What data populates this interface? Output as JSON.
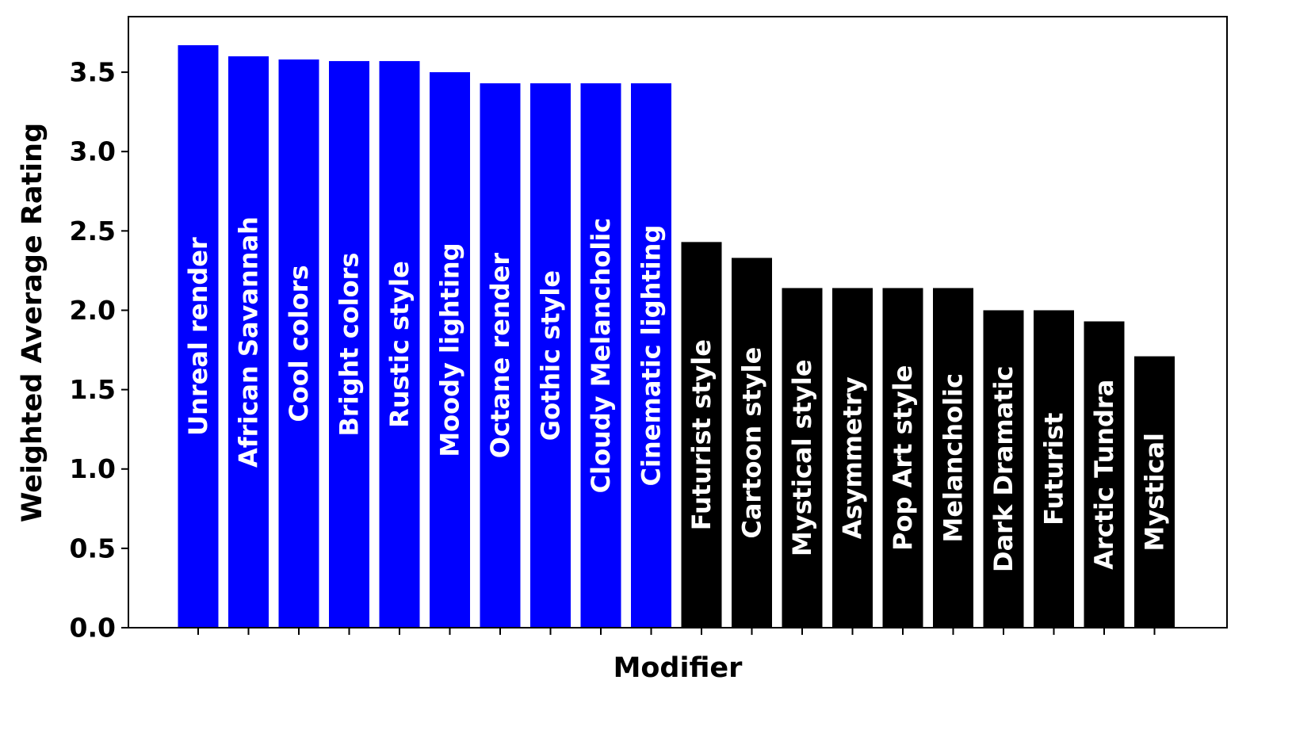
{
  "chart_data": {
    "type": "bar",
    "title": "",
    "xlabel": "Modifier",
    "ylabel": "Weighted Average Rating",
    "ylim": [
      0,
      3.85
    ],
    "yticks": [
      0.0,
      0.5,
      1.0,
      1.5,
      2.0,
      2.5,
      3.0,
      3.5
    ],
    "ytick_labels": [
      "0.0",
      "0.5",
      "1.0",
      "1.5",
      "2.0",
      "2.5",
      "3.0",
      "3.5"
    ],
    "grid": false,
    "legend": "none",
    "categories": [
      "Unreal render",
      "African Savannah",
      "Cool colors",
      "Bright colors",
      "Rustic style",
      "Moody lighting",
      "Octane render",
      "Gothic style",
      "Cloudy Melancholic",
      "Cinematic lighting",
      "Futurist style",
      "Cartoon style",
      "Mystical style",
      "Asymmetry",
      "Pop Art style",
      "Melancholic",
      "Dark Dramatic",
      "Futurist",
      "Arctic Tundra",
      "Mystical"
    ],
    "values": [
      3.67,
      3.6,
      3.58,
      3.57,
      3.57,
      3.5,
      3.43,
      3.43,
      3.43,
      3.43,
      2.43,
      2.33,
      2.14,
      2.14,
      2.14,
      2.14,
      2.0,
      2.0,
      1.93,
      1.71
    ],
    "bar_colors": [
      "#0000ff",
      "#0000ff",
      "#0000ff",
      "#0000ff",
      "#0000ff",
      "#0000ff",
      "#0000ff",
      "#0000ff",
      "#0000ff",
      "#0000ff",
      "#000000",
      "#000000",
      "#000000",
      "#000000",
      "#000000",
      "#000000",
      "#000000",
      "#000000",
      "#000000",
      "#000000"
    ],
    "bar_label_color": "#ffffff"
  }
}
